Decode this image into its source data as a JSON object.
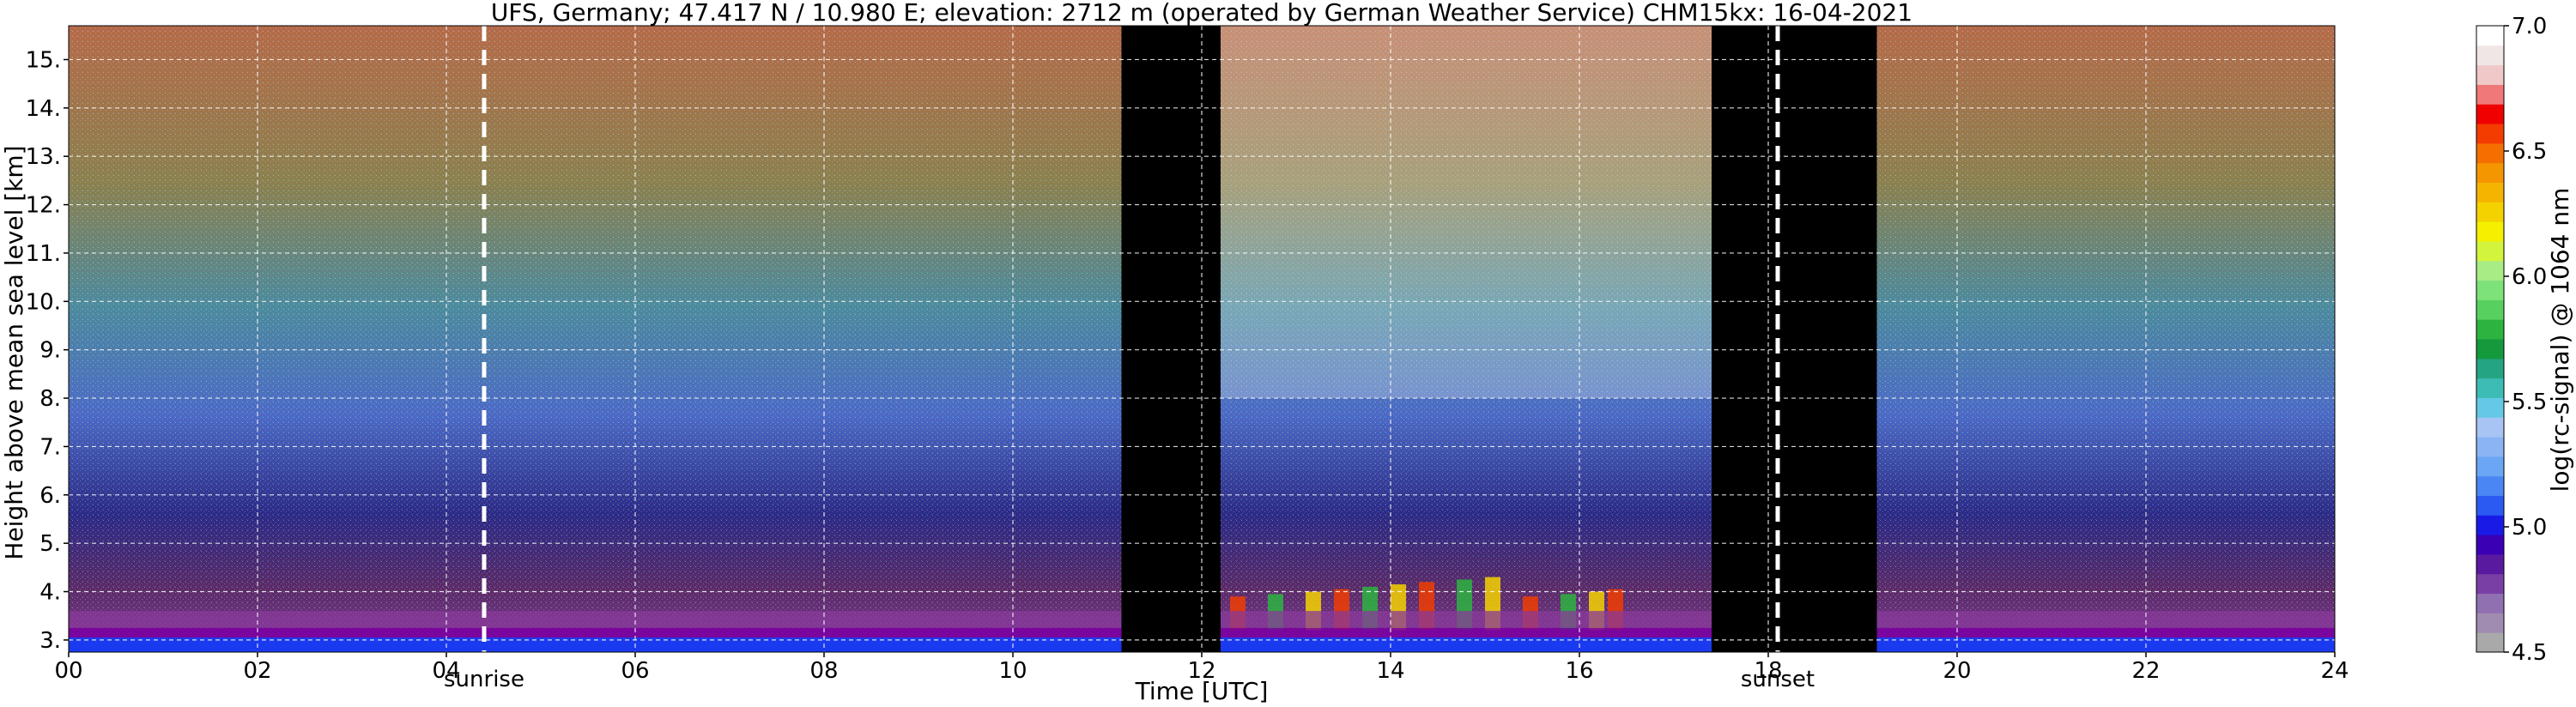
{
  "chart_data": {
    "type": "heatmap",
    "title": "UFS, Germany; 47.417 N / 10.980 E; elevation: 2712 m  (operated by German Weather Service)    CHM15kx: 16-04-2021",
    "xlabel": "Time [UTC]",
    "ylabel": "Height above mean sea level [km]",
    "xlim": [
      0,
      24
    ],
    "ylim": [
      2.75,
      15.7
    ],
    "x_ticks": [
      "00",
      "02",
      "04",
      "06",
      "08",
      "10",
      "12",
      "14",
      "16",
      "18",
      "20",
      "22",
      "24"
    ],
    "y_ticks": [
      "3.",
      "4.",
      "5.",
      "6.",
      "7.",
      "8.",
      "9.",
      "10.",
      "11.",
      "12.",
      "13.",
      "14.",
      "15."
    ],
    "grid": true,
    "markers": [
      {
        "label": "sunrise",
        "time": 4.4
      },
      {
        "label": "sunset",
        "time": 18.1
      }
    ],
    "no_data_periods": [
      [
        11.15,
        12.2
      ],
      [
        17.4,
        19.15
      ]
    ],
    "colorbar": {
      "label": "log(rc-signal) @ 1064 nm",
      "range": [
        4.5,
        7.0
      ],
      "ticks": [
        "4.5",
        "5.0",
        "5.5",
        "6.0",
        "6.5",
        "7.0"
      ],
      "colors": [
        "#a9a9a9",
        "#a08cb0",
        "#9070b0",
        "#7a3fa5",
        "#5a1aa0",
        "#3a00b4",
        "#1a1ae6",
        "#2a5af2",
        "#4a86f4",
        "#6aa6f4",
        "#8ab4f4",
        "#a8c4f4",
        "#64c8e6",
        "#3cbcb4",
        "#24a482",
        "#149a3c",
        "#2cb440",
        "#58d060",
        "#7ee27a",
        "#a8ec84",
        "#d2f43c",
        "#f4f000",
        "#f4d200",
        "#f4b400",
        "#f49600",
        "#f46e00",
        "#f43c00",
        "#f00000",
        "#f07878",
        "#f0c8c8",
        "#f0e6e6",
        "#ffffff"
      ]
    }
  }
}
